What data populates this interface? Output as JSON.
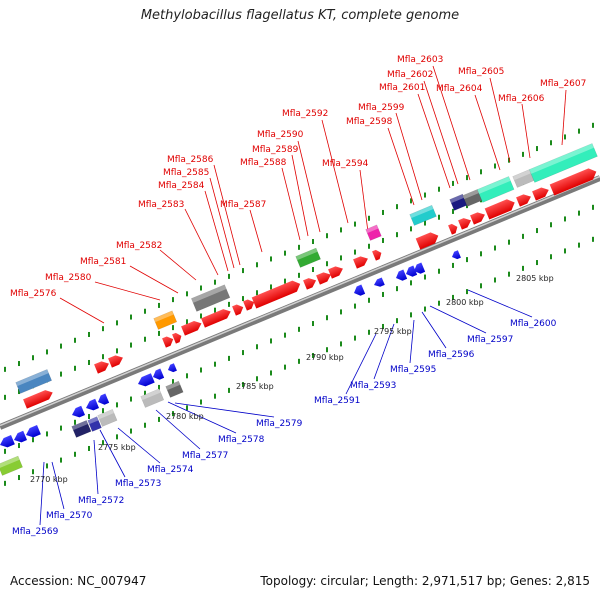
{
  "title": "Methylobacillus flagellatus KT, complete genome",
  "footer": {
    "accession": "Accession: NC_007947",
    "stats": "Topology: circular; Length: 2,971,517 bp; Genes: 2,815"
  },
  "colors": {
    "forward_label": "#e00000",
    "reverse_label": "#0000c8",
    "backbone": "#9a9a9a",
    "dots": "#1a8a1a"
  },
  "scale_labels": [
    "2770 kbp",
    "2775 kbp",
    "2780 kbp",
    "2785 kbp",
    "2790 kbp",
    "2795 kbp",
    "2800 kbp",
    "2805 kbp"
  ],
  "forward_labels": [
    "Mfla_2576",
    "Mfla_2580",
    "Mfla_2581",
    "Mfla_2582",
    "Mfla_2583",
    "Mfla_2584",
    "Mfla_2585",
    "Mfla_2586",
    "Mfla_2587",
    "Mfla_2588",
    "Mfla_2589",
    "Mfla_2590",
    "Mfla_2592",
    "Mfla_2594",
    "Mfla_2598",
    "Mfla_2599",
    "Mfla_2601",
    "Mfla_2602",
    "Mfla_2603",
    "Mfla_2604",
    "Mfla_2605",
    "Mfla_2606",
    "Mfla_2607"
  ],
  "reverse_labels": [
    "Mfla_2569",
    "Mfla_2570",
    "Mfla_2572",
    "Mfla_2573",
    "Mfla_2574",
    "Mfla_2577",
    "Mfla_2578",
    "Mfla_2579",
    "Mfla_2591",
    "Mfla_2593",
    "Mfla_2595",
    "Mfla_2596",
    "Mfla_2597",
    "Mfla_2600"
  ]
}
